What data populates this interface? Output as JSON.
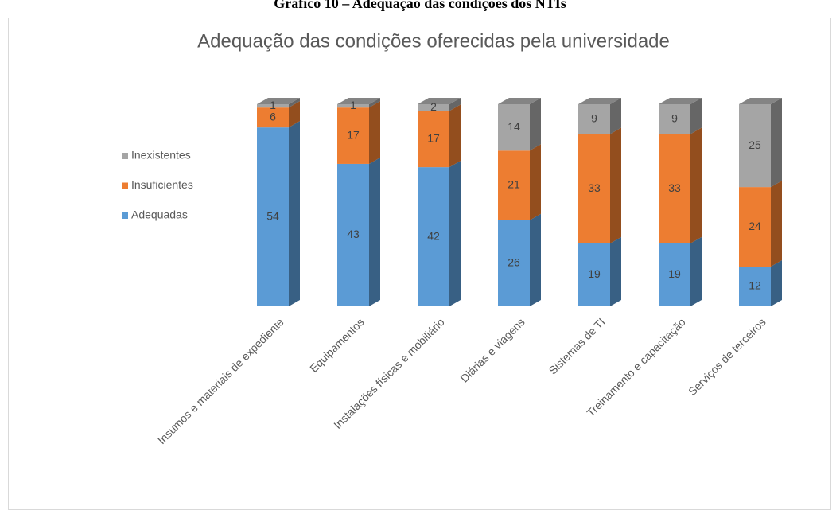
{
  "caption": "Gráfico 10 – Adequação das condições dos NTIs",
  "chart_data": {
    "type": "bar3d_stacked",
    "title": "Adequação das condições oferecidas pela universidade",
    "categories": [
      "Insumos e materiais de expediente",
      "Equipamentos",
      "Instalações físicas e mobiliário",
      "Diárias e viagens",
      "Sistemas de TI",
      "Treinamento e capacitação",
      "Serviços de terceiros"
    ],
    "series": [
      {
        "name": "Adequadas",
        "color": "#5b9bd5",
        "values": [
          54,
          43,
          42,
          26,
          19,
          19,
          12
        ]
      },
      {
        "name": "Insuficientes",
        "color": "#ed7d31",
        "values": [
          6,
          17,
          17,
          21,
          33,
          33,
          24
        ]
      },
      {
        "name": "Inexistentes",
        "color": "#a5a5a5",
        "values": [
          1,
          1,
          2,
          14,
          9,
          9,
          25
        ]
      }
    ],
    "legend": "left"
  }
}
